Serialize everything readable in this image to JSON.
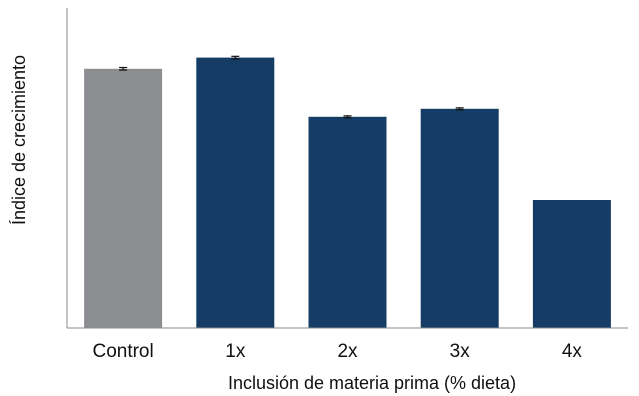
{
  "chart_data": {
    "type": "bar",
    "title": "",
    "xlabel": "Inclusión de materia prima (% dieta)",
    "ylabel": "Índice de crecimiento",
    "categories": [
      "Control",
      "1x",
      "2x",
      "3x",
      "4x"
    ],
    "values": [
      81,
      84.5,
      66,
      68.5,
      40
    ],
    "errors": [
      0.4,
      0.4,
      0.3,
      0.3,
      0
    ],
    "ylim": [
      0,
      100
    ],
    "grid": false,
    "legend": "none",
    "colors": [
      "#8c8d90",
      "#143c64",
      "#143c64",
      "#143c64",
      "#143c64"
    ],
    "error_color": "#111111",
    "axis_color": "#8a8a8a"
  }
}
